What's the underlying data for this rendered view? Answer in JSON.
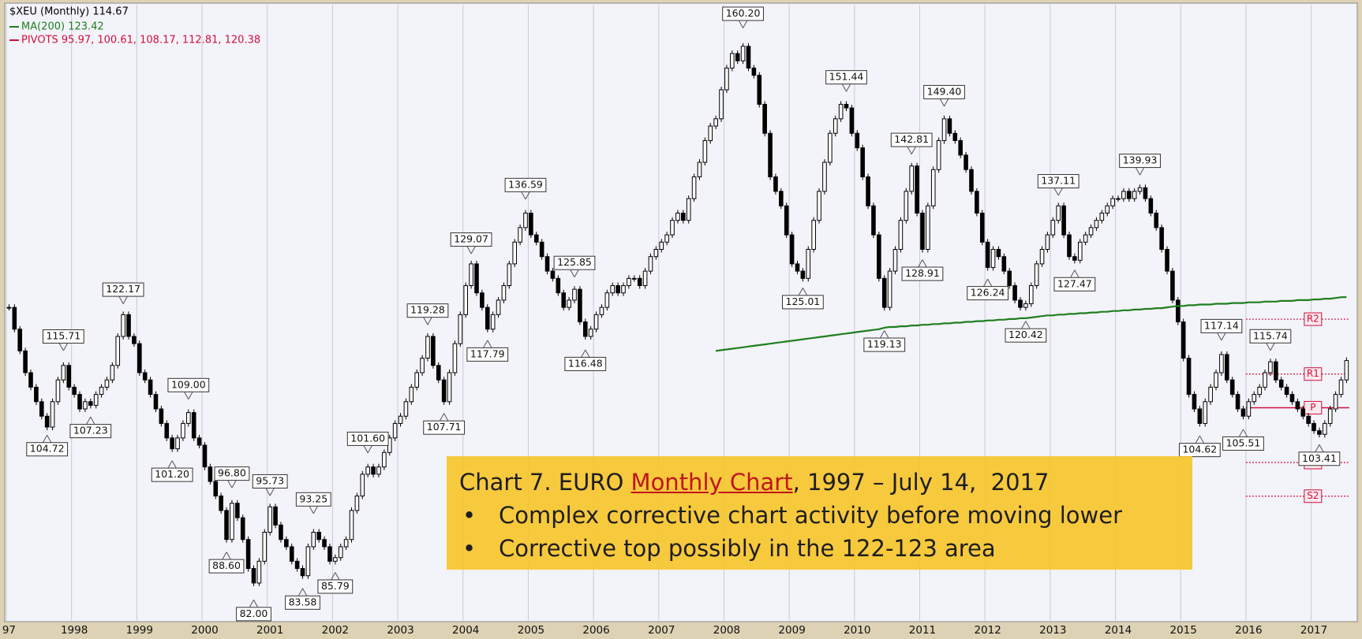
{
  "chart_data": {
    "type": "candlestick",
    "title": "$XEU (Monthly) 114.67",
    "categories": [
      "97",
      null,
      null,
      null,
      null,
      null,
      null,
      null,
      null,
      null,
      null,
      null,
      "1998",
      null,
      null,
      null,
      null,
      null,
      null,
      null,
      null,
      null,
      null,
      null,
      "1999",
      null,
      null,
      null,
      null,
      null,
      null,
      null,
      null,
      null,
      null,
      null,
      "2000",
      null,
      null,
      null,
      null,
      null,
      null,
      null,
      null,
      null,
      null,
      null,
      "2001",
      null,
      null,
      null,
      null,
      null,
      null,
      null,
      null,
      null,
      null,
      null,
      "2002",
      null,
      null,
      null,
      null,
      null,
      null,
      null,
      null,
      null,
      null,
      null,
      "2003",
      null,
      null,
      null,
      null,
      null,
      null,
      null,
      null,
      null,
      null,
      null,
      "2004",
      null,
      null,
      null,
      null,
      null,
      null,
      null,
      null,
      null,
      null,
      null,
      "2005",
      null,
      null,
      null,
      null,
      null,
      null,
      null,
      null,
      null,
      null,
      null,
      "2006",
      null,
      null,
      null,
      null,
      null,
      null,
      null,
      null,
      null,
      null,
      null,
      "2007",
      null,
      null,
      null,
      null,
      null,
      null,
      null,
      null,
      null,
      null,
      null,
      "2008",
      null,
      null,
      null,
      null,
      null,
      null,
      null,
      null,
      null,
      null,
      null,
      "2009",
      null,
      null,
      null,
      null,
      null,
      null,
      null,
      null,
      null,
      null,
      null,
      "2010",
      null,
      null,
      null,
      null,
      null,
      null,
      null,
      null,
      null,
      null,
      null,
      "2011",
      null,
      null,
      null,
      null,
      null,
      null,
      null,
      null,
      null,
      null,
      null,
      "2012",
      null,
      null,
      null,
      null,
      null,
      null,
      null,
      null,
      null,
      null,
      null,
      "2013",
      null,
      null,
      null,
      null,
      null,
      null,
      null,
      null,
      null,
      null,
      null,
      "2014",
      null,
      null,
      null,
      null,
      null,
      null,
      null,
      null,
      null,
      null,
      null,
      "2015",
      null,
      null,
      null,
      null,
      null,
      null,
      null,
      null,
      null,
      null,
      null,
      "2016",
      null,
      null,
      null,
      null,
      null,
      null,
      null,
      null,
      null,
      null,
      null,
      "2017",
      null,
      null,
      null,
      null,
      null,
      null
    ],
    "series": [
      {
        "name": "$XEU (Monthly) 114.67",
        "color": "#000000",
        "values": [
          122,
          119,
          116,
          113,
          111,
          109,
          107,
          105.5,
          109,
          112,
          114,
          111,
          110,
          108,
          109,
          108.5,
          110,
          111,
          112,
          114,
          118,
          121,
          118,
          117,
          113,
          112,
          110,
          108,
          106,
          104,
          102.5,
          104,
          106,
          107.5,
          104,
          103,
          100,
          98,
          96,
          94,
          90,
          95,
          93,
          90,
          86,
          84,
          87,
          91,
          94.5,
          92,
          90,
          89,
          87,
          86,
          85,
          89,
          91,
          90,
          89,
          87,
          87.5,
          89,
          90,
          94,
          96,
          99,
          100,
          99,
          100,
          102,
          104,
          106,
          107,
          109,
          111,
          113,
          115,
          118,
          114,
          112,
          109,
          113,
          117,
          121,
          125,
          128,
          124,
          122,
          119,
          121,
          123,
          125,
          128,
          131,
          133,
          135,
          132,
          131,
          129,
          127,
          126,
          124,
          122,
          123,
          124.5,
          120,
          118,
          119,
          121,
          122,
          124,
          125,
          124,
          125,
          126,
          126,
          125,
          127,
          129,
          130,
          131,
          132,
          134,
          135,
          134,
          137,
          140,
          142,
          145,
          147,
          148,
          152,
          155,
          157,
          156,
          158,
          155,
          154,
          150,
          146,
          140,
          138,
          136,
          132,
          128,
          127,
          126,
          130,
          134,
          138,
          142,
          146,
          148,
          150,
          149.5,
          146,
          144,
          140,
          136,
          132,
          126,
          122,
          127,
          130,
          134,
          138,
          141.5,
          135,
          130,
          136,
          141,
          145,
          148,
          146,
          145,
          143,
          141,
          138,
          135,
          131,
          127.5,
          130,
          129,
          127,
          125,
          123,
          122,
          122.5,
          125,
          128,
          130,
          132,
          134,
          136,
          132,
          129,
          128.5,
          131,
          132,
          133,
          134,
          135,
          136,
          137,
          137,
          138,
          137,
          138,
          138.5,
          137,
          135,
          133,
          130,
          127,
          123,
          120,
          115,
          110,
          108,
          106,
          109,
          111,
          113,
          115.5,
          112,
          110,
          108,
          107,
          109,
          110,
          111,
          113,
          114.5,
          112,
          111,
          110,
          109,
          108,
          107,
          106,
          105,
          104.5,
          106,
          108,
          110,
          112,
          114.67
        ]
      },
      {
        "name": "MA(200) 123.42",
        "color": "#1f7f1f",
        "values": [
          null,
          null,
          null,
          null,
          null,
          null,
          null,
          null,
          null,
          null,
          null,
          null,
          null,
          null,
          null,
          null,
          null,
          null,
          null,
          null,
          null,
          null,
          null,
          null,
          null,
          null,
          null,
          null,
          null,
          null,
          null,
          null,
          null,
          null,
          null,
          null,
          null,
          null,
          null,
          null,
          null,
          null,
          null,
          null,
          null,
          null,
          null,
          null,
          null,
          null,
          null,
          null,
          null,
          null,
          null,
          null,
          null,
          null,
          null,
          null,
          null,
          null,
          null,
          null,
          null,
          null,
          null,
          null,
          null,
          null,
          null,
          null,
          null,
          null,
          null,
          null,
          null,
          null,
          null,
          null,
          null,
          null,
          null,
          null,
          null,
          null,
          null,
          null,
          null,
          null,
          null,
          null,
          null,
          null,
          null,
          null,
          null,
          null,
          null,
          null,
          null,
          null,
          null,
          null,
          null,
          null,
          null,
          null,
          null,
          null,
          null,
          null,
          null,
          null,
          null,
          null,
          null,
          null,
          null,
          null,
          null,
          null,
          null,
          null,
          null,
          null,
          null,
          null,
          null,
          null,
          116.0,
          116.1,
          116.2,
          116.3,
          116.4,
          116.5,
          116.6,
          116.7,
          116.8,
          116.9,
          117.0,
          117.1,
          117.2,
          117.3,
          117.4,
          117.5,
          117.6,
          117.7,
          117.8,
          117.9,
          118.0,
          118.1,
          118.2,
          118.3,
          118.4,
          118.5,
          118.6,
          118.7,
          118.8,
          118.9,
          119.0,
          119.2,
          119.3,
          119.3,
          119.4,
          119.4,
          119.5,
          119.5,
          119.6,
          119.6,
          119.7,
          119.7,
          119.8,
          119.8,
          119.9,
          119.9,
          120.0,
          120.0,
          120.1,
          120.1,
          120.2,
          120.2,
          120.3,
          120.3,
          120.4,
          120.4,
          120.5,
          120.5,
          120.6,
          120.7,
          120.8,
          120.9,
          120.9,
          121.0,
          121.0,
          121.1,
          121.1,
          121.2,
          121.2,
          121.3,
          121.3,
          121.4,
          121.4,
          121.5,
          121.5,
          121.6,
          121.6,
          121.7,
          121.7,
          121.8,
          121.8,
          121.9,
          121.9,
          122.0,
          122.1,
          122.2,
          122.2,
          122.3,
          122.3,
          122.4,
          122.4,
          122.4,
          122.5,
          122.5,
          122.5,
          122.6,
          122.6,
          122.6,
          122.7,
          122.7,
          122.7,
          122.8,
          122.8,
          122.8,
          122.9,
          122.9,
          122.9,
          123.0,
          123.0,
          123.0,
          123.1,
          123.1,
          123.2,
          123.2,
          123.3,
          123.4,
          123.42
        ]
      }
    ],
    "pivots": {
      "name": "PIVOTS 95.97, 100.61, 108.17, 112.81, 120.38",
      "color": "#d0103a",
      "values": [
        95.97,
        100.61,
        108.17,
        112.81,
        120.38
      ],
      "labels": [
        "S2",
        "S1",
        "P",
        "R1",
        "R2"
      ]
    },
    "annotations": [
      {
        "value": 160.2,
        "label": "160.20",
        "x": 135,
        "side": "above"
      },
      {
        "value": 151.44,
        "x": 154,
        "side": "above"
      },
      {
        "value": 149.4,
        "label": "149.40",
        "x": 172,
        "side": "above"
      },
      {
        "value": 142.81,
        "x": 166,
        "side": "above"
      },
      {
        "value": 139.93,
        "x": 208,
        "side": "above"
      },
      {
        "value": 137.11,
        "x": 193,
        "side": "above"
      },
      {
        "value": 136.59,
        "x": 95,
        "side": "above"
      },
      {
        "value": 129.07,
        "x": 85,
        "side": "above"
      },
      {
        "value": 125.85,
        "x": 104,
        "side": "above"
      },
      {
        "value": 122.17,
        "x": 21,
        "side": "above"
      },
      {
        "value": 119.28,
        "x": 77,
        "side": "above"
      },
      {
        "value": 117.14,
        "x": 223,
        "side": "above"
      },
      {
        "value": 115.74,
        "x": 232,
        "side": "above"
      },
      {
        "value": 115.71,
        "x": 10,
        "side": "above"
      },
      {
        "value": 109.0,
        "label": "109.00",
        "x": 33,
        "side": "above"
      },
      {
        "value": 101.6,
        "label": "101.60",
        "x": 66,
        "side": "above"
      },
      {
        "value": 96.8,
        "label": "96.80",
        "x": 41,
        "side": "above"
      },
      {
        "value": 95.73,
        "x": 48,
        "side": "above"
      },
      {
        "value": 93.25,
        "x": 56,
        "side": "above"
      },
      {
        "value": 125.01,
        "x": 146,
        "side": "below"
      },
      {
        "value": 128.91,
        "x": 168,
        "side": "below"
      },
      {
        "value": 126.24,
        "x": 180,
        "side": "below"
      },
      {
        "value": 120.42,
        "x": 187,
        "side": "below"
      },
      {
        "value": 127.47,
        "x": 196,
        "side": "below"
      },
      {
        "value": 119.13,
        "x": 161,
        "side": "below"
      },
      {
        "value": 117.79,
        "x": 88,
        "side": "below"
      },
      {
        "value": 116.48,
        "x": 106,
        "side": "below"
      },
      {
        "value": 107.71,
        "x": 80,
        "side": "below"
      },
      {
        "value": 107.23,
        "x": 15,
        "side": "below"
      },
      {
        "value": 104.72,
        "x": 7,
        "side": "below"
      },
      {
        "value": 101.2,
        "label": "101.20",
        "x": 30,
        "side": "below"
      },
      {
        "value": 88.6,
        "label": "88.60",
        "x": 40,
        "side": "below"
      },
      {
        "value": 82.0,
        "label": "82.00",
        "x": 45,
        "side": "below"
      },
      {
        "value": 83.58,
        "x": 54,
        "side": "below"
      },
      {
        "value": 85.79,
        "x": 60,
        "side": "below"
      },
      {
        "value": 104.62,
        "x": 219,
        "side": "below"
      },
      {
        "value": 105.51,
        "x": 227,
        "side": "below"
      },
      {
        "value": 103.41,
        "x": 241,
        "side": "below"
      }
    ],
    "ylim": [
      78.67,
      163.73
    ],
    "grid": true,
    "textbox": {
      "heading_before": "Chart 7. EURO ",
      "link": "Monthly Chart",
      "heading_after": ", 1997 – July 14,  2017",
      "bullets": [
        "Complex corrective chart activity before moving lower",
        "Corrective top possibly in the 122-123 area"
      ]
    }
  }
}
